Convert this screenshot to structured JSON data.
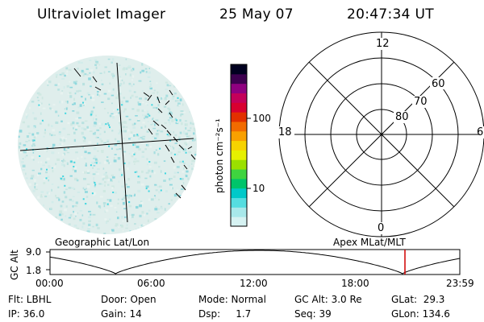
{
  "header": {
    "title": "Ultraviolet Imager",
    "date": "25 May 07",
    "time": "20:47:34 UT"
  },
  "colorbar": {
    "unit_label": "photon cm⁻²s⁻¹",
    "tick_100": "100",
    "tick_10": "10",
    "scale": "log",
    "colors": [
      "#d6f2f2",
      "#a8e8ea",
      "#55dde0",
      "#00c9c9",
      "#00c46a",
      "#3fd43f",
      "#9be000",
      "#e6f000",
      "#f7d300",
      "#f9a000",
      "#f26b00",
      "#e23000",
      "#d80030",
      "#c4005a",
      "#8f0080",
      "#3d0050",
      "#000020"
    ]
  },
  "image_panel": {
    "left_label": "Geographic Lat/Lon"
  },
  "polar_panel": {
    "label_12": "12",
    "label_18": "18",
    "label_6": "6",
    "label_0": "0",
    "label_60": "60",
    "label_70": "70",
    "label_80": "80",
    "right_label": "Apex MLat/MLT"
  },
  "altitude_plot": {
    "axis_label": "GC Alt",
    "y_max": "9.0",
    "y_min": "1.8",
    "x_ticks": [
      "00:00",
      "06:00",
      "12:00",
      "18:00",
      "23:59"
    ],
    "current_marker_color": "#d00000"
  },
  "info": {
    "flt": "Flt: LBHL",
    "door": "Door: Open",
    "mode": "Mode: Normal",
    "gc_alt": "GC Alt: 3.0 Re",
    "glat": "GLat:  29.3",
    "ip": "IP: 36.0",
    "gain": "Gain: 14",
    "dsp": "Dsp:     1.7",
    "seq": "Seq: 39",
    "glon": "GLon: 134.6"
  }
}
